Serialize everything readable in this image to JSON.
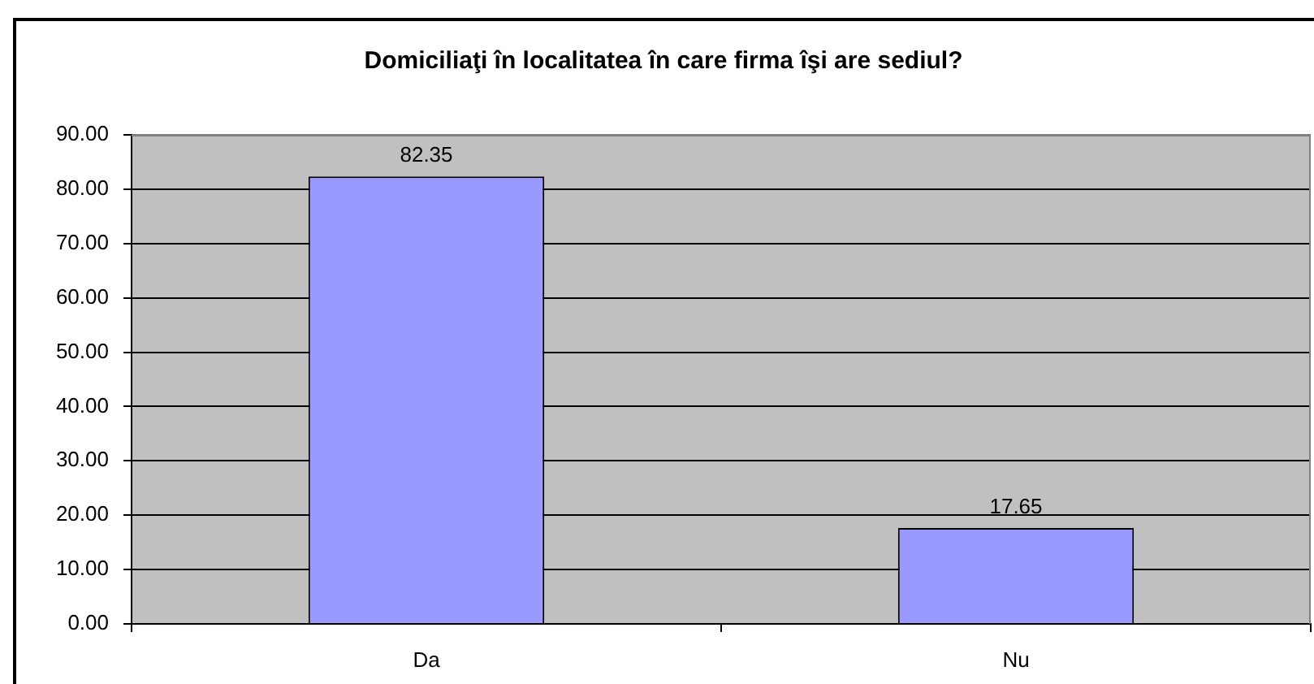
{
  "chart_data": {
    "type": "bar",
    "title": "Domiciliaţi în localitatea în care firma îşi are sediul?",
    "categories": [
      "Da",
      "Nu"
    ],
    "values": [
      82.35,
      17.65
    ],
    "color": "#9999ff",
    "ylim": [
      0,
      90
    ],
    "yticks": [
      {
        "value": 0,
        "label": "0.00"
      },
      {
        "value": 10,
        "label": "10.00"
      },
      {
        "value": 20,
        "label": "20.00"
      },
      {
        "value": 30,
        "label": "30.00"
      },
      {
        "value": 40,
        "label": "40.00"
      },
      {
        "value": 50,
        "label": "50.00"
      },
      {
        "value": 60,
        "label": "60.00"
      },
      {
        "value": 70,
        "label": "70.00"
      },
      {
        "value": 80,
        "label": "80.00"
      },
      {
        "value": 90,
        "label": "90.00"
      }
    ],
    "grid": "y",
    "data_labels": true
  }
}
